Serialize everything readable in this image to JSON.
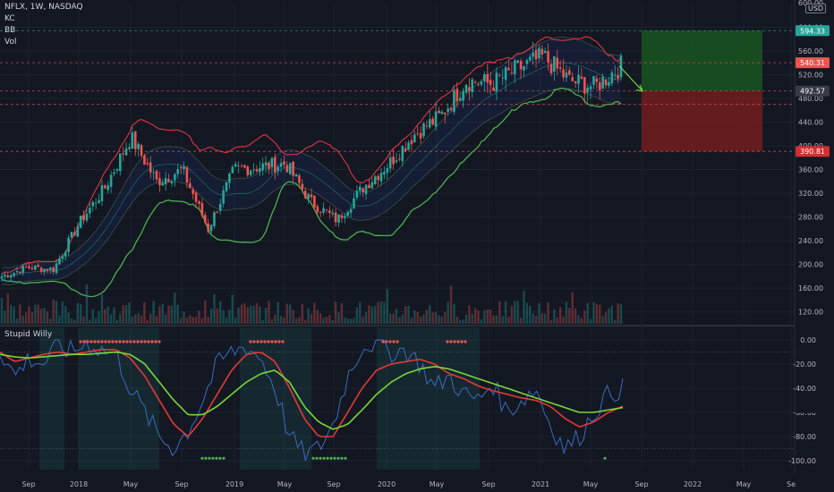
{
  "legend": {
    "symbol_line": "NFLX, 1W, NASDAQ",
    "kc": "KC",
    "bb": "BB",
    "vol": "Vol"
  },
  "oscillator": {
    "title": "Stupid Willy"
  },
  "currency": "USD",
  "colors": {
    "background": "#131722",
    "up": "#26a69a",
    "down": "#ef5350",
    "bb_band": "#f23645",
    "kc_band": "#4caf50",
    "osc_fast": "#3a6bbf",
    "osc_slow": "#e53935",
    "osc_mid": "#76d83a",
    "profit_zone": "#1b5e20",
    "loss_zone": "#7f1d1d"
  },
  "chart_data": [
    {
      "type": "candlestick",
      "title": "NFLX, 1W, NASDAQ",
      "yaxis": {
        "min": 100,
        "max": 640,
        "ticks": [
          120,
          160,
          200,
          240,
          280,
          320,
          360,
          400,
          440,
          480,
          520,
          560,
          600
        ]
      },
      "xaxis": {
        "ticks": [
          "Sep",
          "2018",
          "May",
          "Sep",
          "2019",
          "May",
          "Sep",
          "2020",
          "May",
          "Sep",
          "2021",
          "May",
          "Sep",
          "2022",
          "May",
          "Se"
        ]
      },
      "price_tags": [
        {
          "label": "594.33",
          "value": 594.33,
          "color": "#26a69a"
        },
        {
          "label": "540.31",
          "value": 540.31,
          "color": "#ef5350"
        },
        {
          "label": "492.57",
          "value": 492.57,
          "color": "#363a45"
        },
        {
          "label": "390.81",
          "value": 390.81,
          "color": "#d32f2f"
        }
      ],
      "partial_top_tick": "600.00",
      "series_path_prices": [
        {
          "date": "2017-08",
          "close": 180
        },
        {
          "date": "2017-10",
          "close": 195
        },
        {
          "date": "2017-12",
          "close": 192
        },
        {
          "date": "2018-02",
          "close": 270
        },
        {
          "date": "2018-04",
          "close": 330
        },
        {
          "date": "2018-06",
          "close": 415
        },
        {
          "date": "2018-08",
          "close": 340
        },
        {
          "date": "2018-10",
          "close": 360
        },
        {
          "date": "2018-12",
          "close": 260
        },
        {
          "date": "2019-02",
          "close": 360
        },
        {
          "date": "2019-04",
          "close": 365
        },
        {
          "date": "2019-06",
          "close": 370
        },
        {
          "date": "2019-08",
          "close": 305
        },
        {
          "date": "2019-10",
          "close": 275
        },
        {
          "date": "2019-12",
          "close": 330
        },
        {
          "date": "2020-02",
          "close": 370
        },
        {
          "date": "2020-04",
          "close": 420
        },
        {
          "date": "2020-06",
          "close": 450
        },
        {
          "date": "2020-08",
          "close": 510
        },
        {
          "date": "2020-10",
          "close": 505
        },
        {
          "date": "2020-12",
          "close": 530
        },
        {
          "date": "2021-02",
          "close": 550
        },
        {
          "date": "2021-04",
          "close": 510
        },
        {
          "date": "2021-06",
          "close": 500
        },
        {
          "date": "2021-07",
          "close": 535
        }
      ]
    },
    {
      "type": "line",
      "title": "Stupid Willy",
      "yaxis": {
        "min": -100,
        "max": 0,
        "ticks": [
          0,
          -20,
          -40,
          -60,
          -80,
          -100
        ]
      },
      "series": [
        {
          "values": [
            -8,
            -30,
            -15,
            -20,
            -5,
            -10,
            -2,
            -8,
            -12,
            -40,
            -60,
            -80,
            -90,
            -75,
            -50,
            -20,
            -10,
            -5,
            -15,
            -40,
            -80,
            -95,
            -90,
            -70,
            -30,
            -5,
            -2,
            -10,
            -8,
            -20,
            -40,
            -30,
            -45,
            -50,
            -35,
            -60,
            -50,
            -40,
            -70,
            -90,
            -80,
            -60,
            -45,
            -40
          ]
        },
        {
          "values": [
            -10,
            -18,
            -15,
            -12,
            -10,
            -12,
            -10,
            -8,
            -8,
            -15,
            -30,
            -50,
            -70,
            -80,
            -65,
            -45,
            -25,
            -12,
            -10,
            -18,
            -40,
            -65,
            -80,
            -80,
            -60,
            -40,
            -25,
            -20,
            -18,
            -16,
            -20,
            -28,
            -32,
            -38,
            -42,
            -45,
            -48,
            -50,
            -55,
            -65,
            -72,
            -68,
            -60,
            -55
          ]
        },
        {
          "values": [
            -12,
            -14,
            -15,
            -14,
            -13,
            -12,
            -12,
            -11,
            -10,
            -12,
            -20,
            -35,
            -50,
            -62,
            -62,
            -55,
            -45,
            -35,
            -28,
            -25,
            -35,
            -55,
            -68,
            -74,
            -70,
            -58,
            -45,
            -35,
            -28,
            -24,
            -22,
            -24,
            -28,
            -32,
            -36,
            -40,
            -44,
            -48,
            -52,
            -56,
            -60,
            -60,
            -58,
            -56
          ]
        }
      ]
    }
  ]
}
